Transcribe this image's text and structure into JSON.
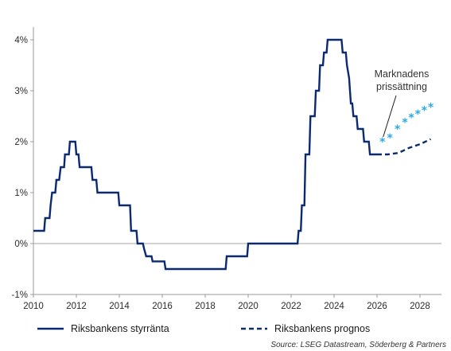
{
  "chart_data": {
    "type": "line",
    "xlim": [
      2010,
      2029
    ],
    "ylim": [
      -1,
      4.25
    ],
    "x_ticks": [
      2010,
      2012,
      2014,
      2016,
      2018,
      2020,
      2022,
      2024,
      2026,
      2028
    ],
    "x_tick_labels": [
      "2010",
      "2012",
      "2014",
      "2016",
      "2018",
      "2020",
      "2022",
      "2024",
      "2026",
      "2028"
    ],
    "y_ticks": [
      -1,
      0,
      1,
      2,
      3,
      4
    ],
    "y_tick_labels": [
      "-1%",
      "0%",
      "1%",
      "2%",
      "3%",
      "4%"
    ],
    "grid": false,
    "legend_position": "bottom",
    "source": "Source: LSEG Datastream, Söderberg & Partners",
    "annotation": {
      "lines": [
        "Marknadens",
        "prissättning"
      ]
    },
    "series": [
      {
        "name": "Riksbankens styrränta",
        "style": "solid-step",
        "color": "#0b2a6f",
        "points": [
          [
            2010.0,
            0.25
          ],
          [
            2010.5,
            0.25
          ],
          [
            2010.55,
            0.5
          ],
          [
            2010.75,
            0.5
          ],
          [
            2010.8,
            0.75
          ],
          [
            2010.87,
            1.0
          ],
          [
            2011.02,
            1.0
          ],
          [
            2011.07,
            1.25
          ],
          [
            2011.2,
            1.25
          ],
          [
            2011.27,
            1.5
          ],
          [
            2011.43,
            1.5
          ],
          [
            2011.47,
            1.75
          ],
          [
            2011.65,
            1.75
          ],
          [
            2011.7,
            2.0
          ],
          [
            2011.95,
            2.0
          ],
          [
            2012.0,
            1.75
          ],
          [
            2012.1,
            1.75
          ],
          [
            2012.15,
            1.5
          ],
          [
            2012.7,
            1.5
          ],
          [
            2012.75,
            1.25
          ],
          [
            2012.93,
            1.25
          ],
          [
            2012.98,
            1.0
          ],
          [
            2013.95,
            1.0
          ],
          [
            2014.0,
            0.75
          ],
          [
            2014.5,
            0.75
          ],
          [
            2014.55,
            0.25
          ],
          [
            2014.8,
            0.25
          ],
          [
            2014.85,
            0.0
          ],
          [
            2015.1,
            0.0
          ],
          [
            2015.15,
            -0.1
          ],
          [
            2015.25,
            -0.25
          ],
          [
            2015.5,
            -0.25
          ],
          [
            2015.55,
            -0.35
          ],
          [
            2016.1,
            -0.35
          ],
          [
            2016.15,
            -0.5
          ],
          [
            2018.95,
            -0.5
          ],
          [
            2019.0,
            -0.25
          ],
          [
            2019.95,
            -0.25
          ],
          [
            2020.0,
            0.0
          ],
          [
            2022.3,
            0.0
          ],
          [
            2022.35,
            0.25
          ],
          [
            2022.45,
            0.25
          ],
          [
            2022.5,
            0.75
          ],
          [
            2022.62,
            0.75
          ],
          [
            2022.67,
            1.75
          ],
          [
            2022.85,
            1.75
          ],
          [
            2022.9,
            2.5
          ],
          [
            2023.1,
            2.5
          ],
          [
            2023.15,
            3.0
          ],
          [
            2023.3,
            3.0
          ],
          [
            2023.35,
            3.5
          ],
          [
            2023.48,
            3.5
          ],
          [
            2023.53,
            3.75
          ],
          [
            2023.65,
            3.75
          ],
          [
            2023.7,
            4.0
          ],
          [
            2024.35,
            4.0
          ],
          [
            2024.4,
            3.75
          ],
          [
            2024.55,
            3.75
          ],
          [
            2024.6,
            3.5
          ],
          [
            2024.7,
            3.25
          ],
          [
            2024.78,
            2.75
          ],
          [
            2024.85,
            2.75
          ],
          [
            2024.9,
            2.5
          ],
          [
            2025.05,
            2.5
          ],
          [
            2025.1,
            2.25
          ],
          [
            2025.35,
            2.25
          ],
          [
            2025.4,
            2.0
          ],
          [
            2025.62,
            2.0
          ],
          [
            2025.67,
            1.75
          ],
          [
            2026.0,
            1.75
          ]
        ]
      },
      {
        "name": "Riksbankens prognos",
        "style": "dashed",
        "color": "#0b2a6f",
        "points": [
          [
            2026.0,
            1.75
          ],
          [
            2026.5,
            1.75
          ],
          [
            2027.0,
            1.78
          ],
          [
            2027.5,
            1.88
          ],
          [
            2028.0,
            1.95
          ],
          [
            2028.5,
            2.05
          ]
        ]
      },
      {
        "name": "Marknadens prissättning",
        "style": "markers",
        "color": "#29abe2",
        "points": [
          [
            2026.25,
            2.0
          ],
          [
            2026.6,
            2.08
          ],
          [
            2026.95,
            2.25
          ],
          [
            2027.3,
            2.38
          ],
          [
            2027.6,
            2.48
          ],
          [
            2027.9,
            2.55
          ],
          [
            2028.2,
            2.62
          ],
          [
            2028.5,
            2.68
          ]
        ]
      }
    ]
  }
}
